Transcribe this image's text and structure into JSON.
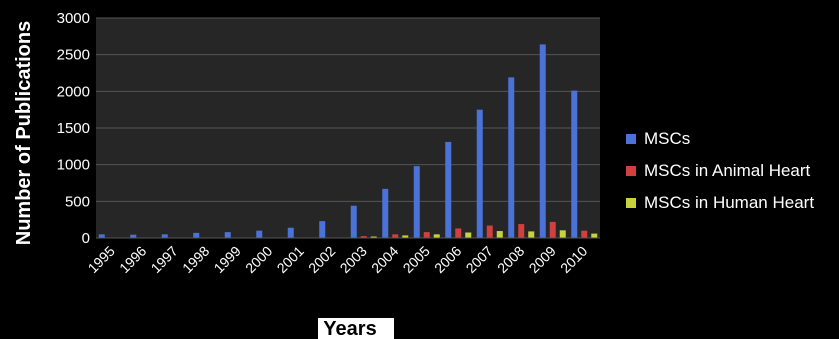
{
  "chart_data": {
    "type": "bar",
    "title": "",
    "xlabel": "Years",
    "ylabel": "Number of Publications",
    "ylim": [
      0,
      3000
    ],
    "yticks": [
      0,
      500,
      1000,
      1500,
      2000,
      2500,
      3000
    ],
    "grid": true,
    "legend_position": "right",
    "categories": [
      "1995",
      "1996",
      "1997",
      "1998",
      "1999",
      "2000",
      "2001",
      "2002",
      "2003",
      "2004",
      "2005",
      "2006",
      "2007",
      "2008",
      "2009",
      "2010"
    ],
    "series": [
      {
        "name": "MSCs",
        "color": "#4a72d8",
        "values": [
          50,
          45,
          50,
          70,
          80,
          100,
          140,
          230,
          440,
          670,
          980,
          1310,
          1750,
          2190,
          2640,
          2010
        ]
      },
      {
        "name": "MSCs in Animal Heart",
        "color": "#d23f3f",
        "values": [
          0,
          0,
          0,
          0,
          0,
          2,
          3,
          5,
          25,
          50,
          80,
          130,
          170,
          190,
          220,
          100
        ]
      },
      {
        "name": "MSCs in Human Heart",
        "color": "#c8d23a",
        "values": [
          0,
          0,
          0,
          0,
          0,
          1,
          2,
          4,
          20,
          35,
          50,
          75,
          95,
          90,
          105,
          60
        ]
      }
    ]
  }
}
